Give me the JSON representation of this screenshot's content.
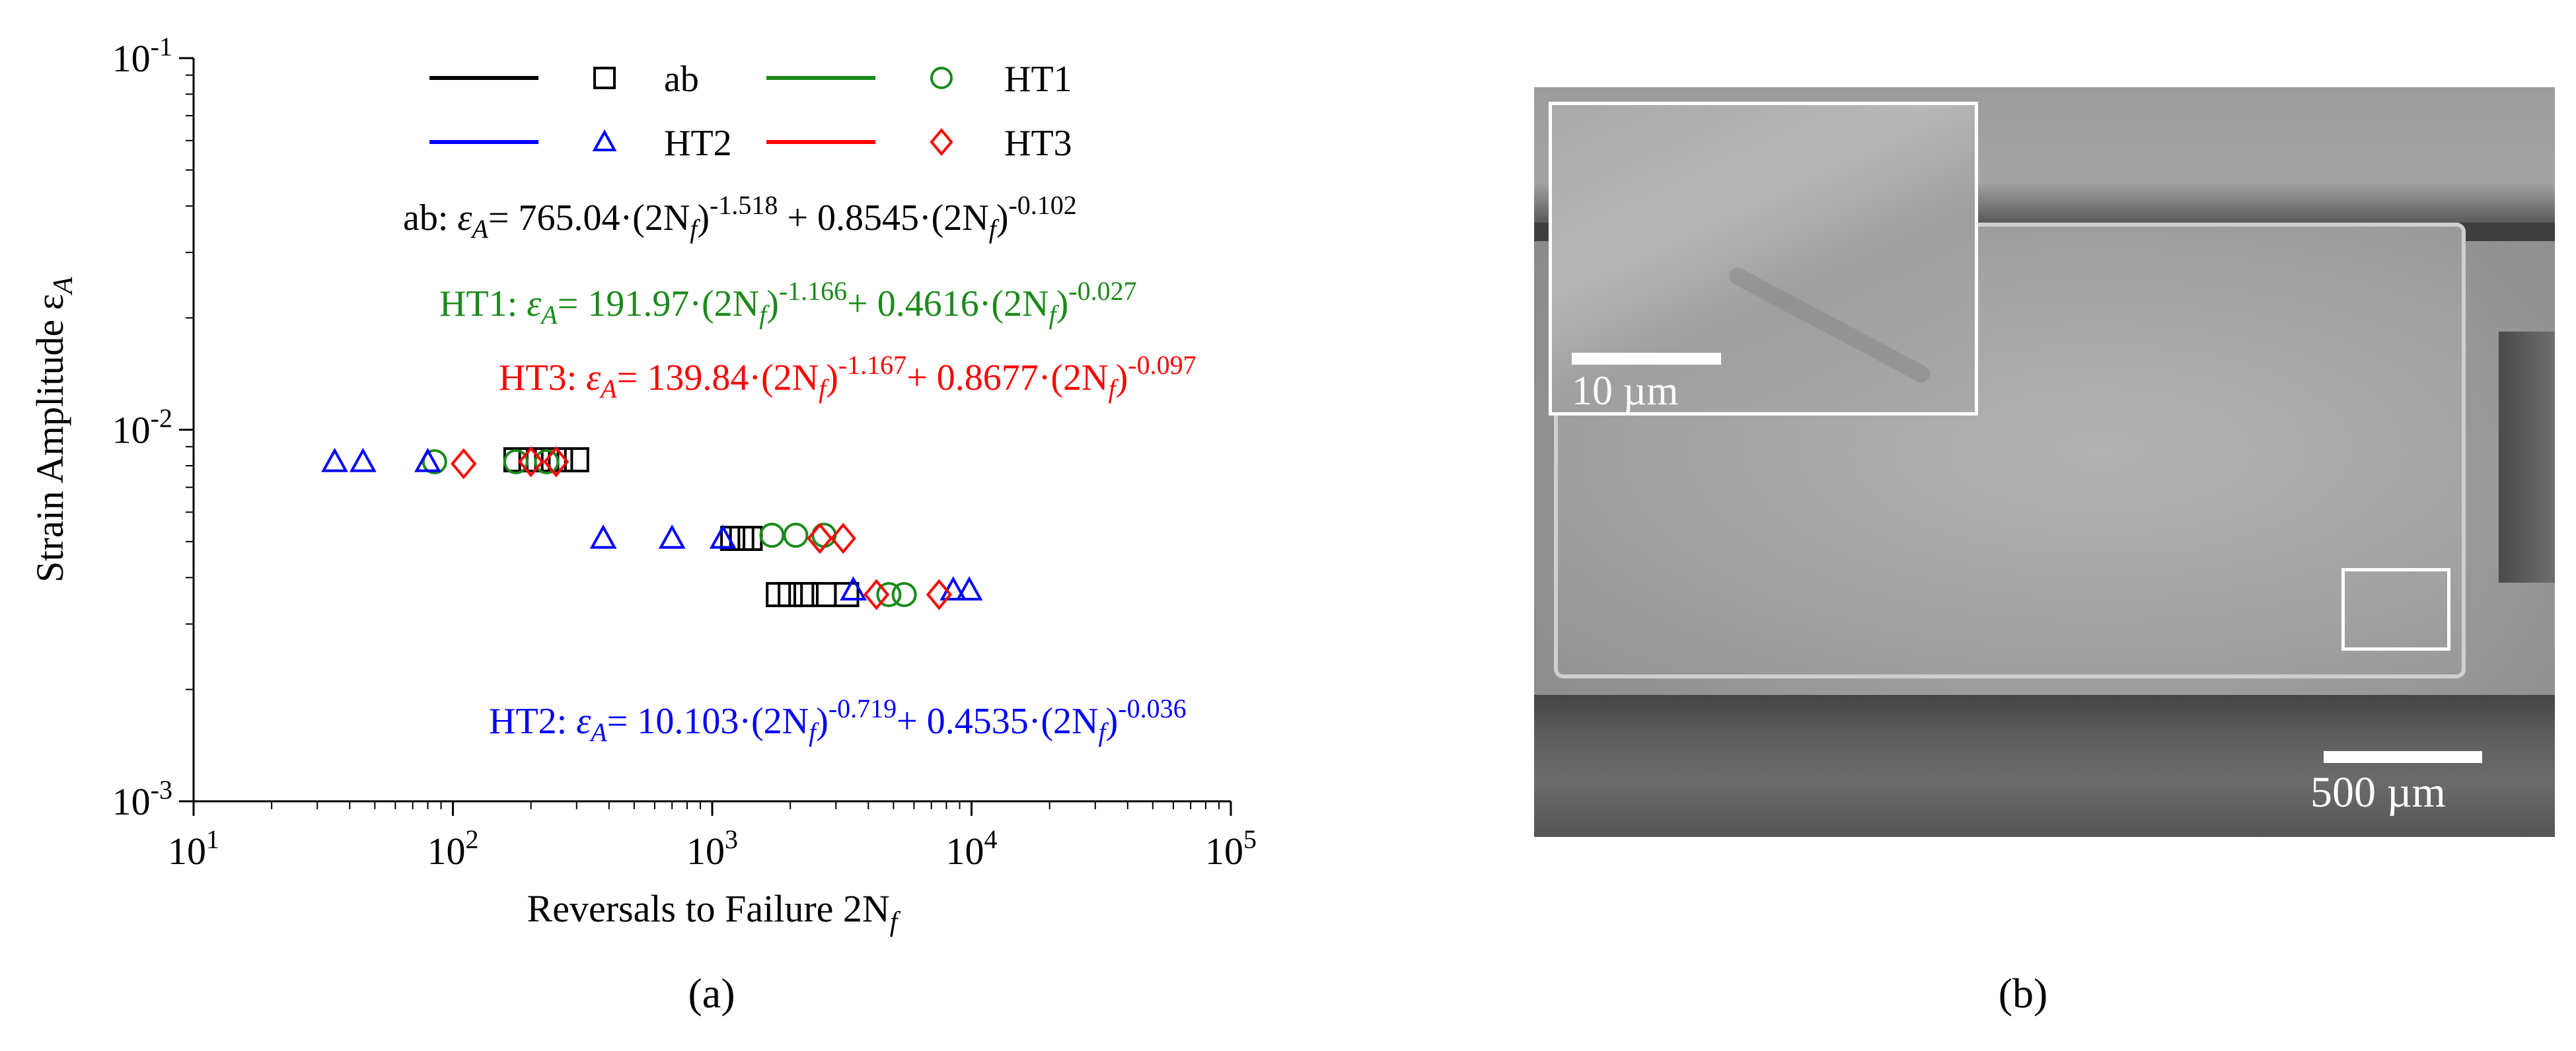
{
  "chart_data": {
    "type": "scatter",
    "xlabel": "Reversals to Failure 2N",
    "xlabel_sub": "f",
    "ylabel": "Strain Amplitude ε",
    "ylabel_sub": "A",
    "xscale": "log",
    "yscale": "log",
    "xlim": [
      10,
      100000
    ],
    "ylim": [
      0.001,
      0.1
    ],
    "x_ticks": [
      {
        "value": 10,
        "base": "10",
        "exp": "1"
      },
      {
        "value": 100,
        "base": "10",
        "exp": "2"
      },
      {
        "value": 1000,
        "base": "10",
        "exp": "3"
      },
      {
        "value": 10000,
        "base": "10",
        "exp": "4"
      },
      {
        "value": 100000,
        "base": "10",
        "exp": "5"
      }
    ],
    "y_ticks": [
      {
        "value": 0.001,
        "base": "10",
        "exp": "-3"
      },
      {
        "value": 0.01,
        "base": "10",
        "exp": "-2"
      },
      {
        "value": 0.1,
        "base": "10",
        "exp": "-1"
      }
    ],
    "legend_position": "top",
    "grid": false,
    "series": [
      {
        "name": "ab",
        "color": "#000000",
        "marker": "square",
        "fit": {
          "a": 765.04,
          "b": -1.518,
          "c": 0.8545,
          "d": -0.102
        },
        "points": [
          [
            175,
            0.0083
          ],
          [
            200,
            0.0083
          ],
          [
            230,
            0.0083
          ],
          [
            260,
            0.0083
          ],
          [
            300,
            0.0083
          ],
          [
            1200,
            0.0051
          ],
          [
            1300,
            0.0051
          ],
          [
            1400,
            0.0051
          ],
          [
            1800,
            0.0036
          ],
          [
            2000,
            0.0036
          ],
          [
            2300,
            0.0036
          ],
          [
            2700,
            0.0036
          ],
          [
            3300,
            0.0036
          ]
        ]
      },
      {
        "name": "HT1",
        "color": "#1a8a1a",
        "marker": "circle",
        "fit": {
          "a": 191.97,
          "b": -1.166,
          "c": 0.4616,
          "d": -0.027
        },
        "points": [
          [
            85,
            0.0082
          ],
          [
            175,
            0.0082
          ],
          [
            230,
            0.0082
          ],
          [
            1700,
            0.0052
          ],
          [
            2100,
            0.0052
          ],
          [
            2700,
            0.0052
          ],
          [
            4800,
            0.0036
          ],
          [
            5500,
            0.0036
          ]
        ]
      },
      {
        "name": "HT2",
        "color": "#0000ff",
        "marker": "triangle",
        "fit": {
          "a": 10.103,
          "b": -0.719,
          "c": 0.4535,
          "d": -0.036
        },
        "points": [
          [
            35,
            0.0082
          ],
          [
            45,
            0.0082
          ],
          [
            80,
            0.0082
          ],
          [
            380,
            0.0051
          ],
          [
            700,
            0.0051
          ],
          [
            1100,
            0.0051
          ],
          [
            3500,
            0.0037
          ],
          [
            8500,
            0.0037
          ],
          [
            9800,
            0.0037
          ]
        ]
      },
      {
        "name": "HT3",
        "color": "#ff0000",
        "marker": "diamond",
        "fit": {
          "a": 139.84,
          "b": -1.167,
          "c": 0.8677,
          "d": -0.097
        },
        "points": [
          [
            110,
            0.0081
          ],
          [
            200,
            0.0082
          ],
          [
            250,
            0.0082
          ],
          [
            2600,
            0.0051
          ],
          [
            3200,
            0.0051
          ],
          [
            4300,
            0.0036
          ],
          [
            7500,
            0.0036
          ]
        ]
      }
    ],
    "equations": [
      {
        "key": "ab",
        "color": "#000000",
        "prefix": "ab: ",
        "c1": "= 765.04·(2N",
        "e1": "-1.518",
        "c2": " + 0.8545·(2N",
        "e2": "-0.102"
      },
      {
        "key": "HT1",
        "color": "#1a8a1a",
        "prefix": "HT1: ",
        "c1": "= 191.97·(2N",
        "e1": "-1.166",
        "c2": "+ 0.4616·(2N",
        "e2": "-0.027"
      },
      {
        "key": "HT3",
        "color": "#ff0000",
        "prefix": "HT3: ",
        "c1": "= 139.84·(2N",
        "e1": "-1.167",
        "c2": "+ 0.8677·(2N",
        "e2": "-0.097"
      },
      {
        "key": "HT2",
        "color": "#0000ff",
        "prefix": "HT2: ",
        "c1": "= 10.103·(2N",
        "e1": "-0.719",
        "c2": "+ 0.4535·(2N",
        "e2": "-0.036"
      }
    ]
  },
  "panels": {
    "a_label": "(a)",
    "b_label": "(b)"
  },
  "sem": {
    "inset_scale": "10 µm",
    "main_scale": "500 µm"
  }
}
